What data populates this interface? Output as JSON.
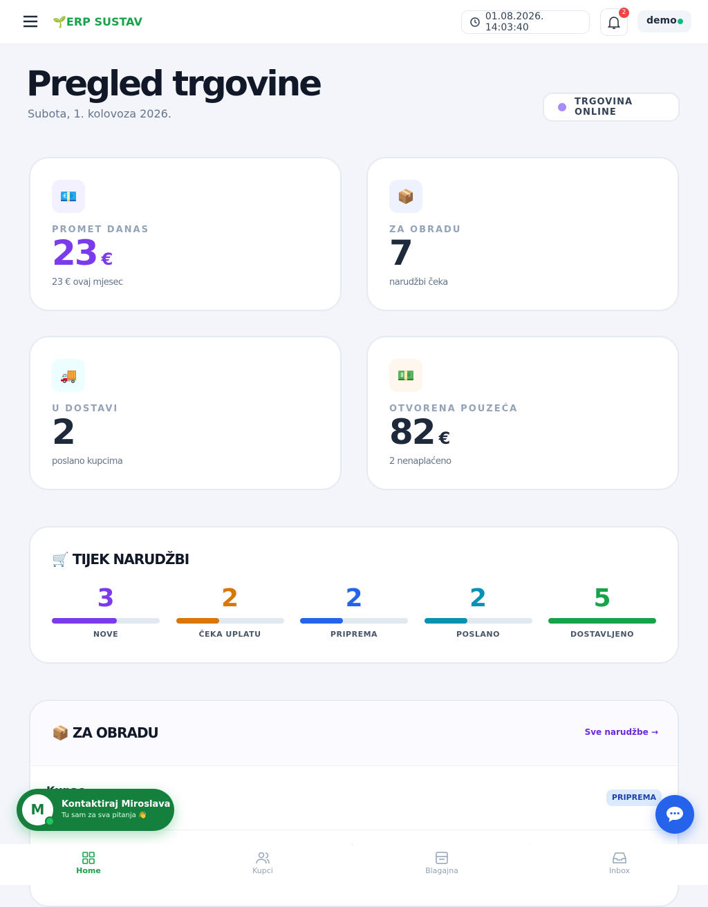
{
  "header": {
    "brand_icon": "🌱",
    "brand": "ERP SUSTAV",
    "datetime": "01.08.2026. 14:03:40",
    "notifications": 2,
    "user": "demo"
  },
  "page": {
    "title": "Pregled trgovine",
    "subtitle": "Subota, 1. kolovoza 2026.",
    "status": "TRGOVINA ONLINE"
  },
  "stats": [
    {
      "icon": "💶",
      "label": "PROMET DANAS",
      "value": "23",
      "unit": "€",
      "note": "23 € ovaj mjesec",
      "color": "#7c3aed"
    },
    {
      "icon": "📦",
      "label": "ZA OBRADU",
      "value": "7",
      "note": "narudžbi čeka",
      "color": "#1e293b"
    },
    {
      "icon": "🚚",
      "label": "U DOSTAVI",
      "value": "2",
      "note": "poslano kupcima",
      "color": "#1e293b"
    },
    {
      "icon": "💵",
      "label": "OTVORENA POUZEĆA",
      "value": "82",
      "unit": "€",
      "note": "2 nenaplaćeno",
      "color": "#1e293b"
    }
  ],
  "flow": {
    "icon": "🛒",
    "title": "TIJEK NARUDŽBI",
    "steps": [
      {
        "label": "NOVE",
        "count": 3,
        "color": "#7c3aed"
      },
      {
        "label": "ČEKA UPLATU",
        "count": 2,
        "color": "#d97706"
      },
      {
        "label": "PRIPREMA",
        "count": 2,
        "color": "#2563eb"
      },
      {
        "label": "POSLANO",
        "count": 2,
        "color": "#0891b2"
      },
      {
        "label": "DOSTAVLJENO",
        "count": 5,
        "color": "#16a34a"
      }
    ]
  },
  "queue": {
    "icon": "📦",
    "title": "ZA OBRADU",
    "link": "Sve narudžbe →",
    "rows": [
      {
        "label": "Kupac",
        "status": "PRIPREMA"
      }
    ]
  },
  "contact": {
    "avatar": "M",
    "name": "Kontaktiraj Miroslava",
    "tagline": "Tu sam za sva pitanja 👋"
  },
  "nav": [
    "Home",
    "Kupci",
    "Blagajna",
    "Inbox"
  ]
}
